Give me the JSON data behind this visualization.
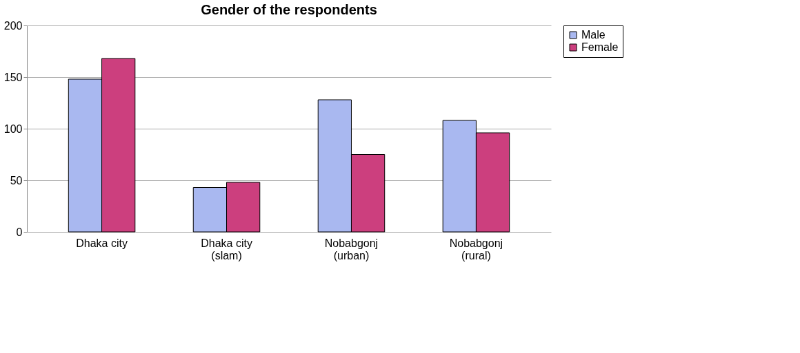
{
  "chart_data": {
    "type": "bar",
    "title": "Gender of the respondents",
    "categories": [
      "Dhaka city",
      "Dhaka city\n(slam)",
      "Nobabgonj\n(urban)",
      "Nobabgonj\n(rural)"
    ],
    "series": [
      {
        "name": "Male",
        "color": "#a9b8f0",
        "values": [
          148,
          43,
          128,
          108
        ]
      },
      {
        "name": "Female",
        "color": "#cc3f7e",
        "values": [
          168,
          48,
          75,
          96
        ]
      }
    ],
    "ylim": [
      0,
      200
    ],
    "yticks": [
      0,
      50,
      100,
      150,
      200
    ],
    "grid": "y",
    "legend": "right"
  }
}
